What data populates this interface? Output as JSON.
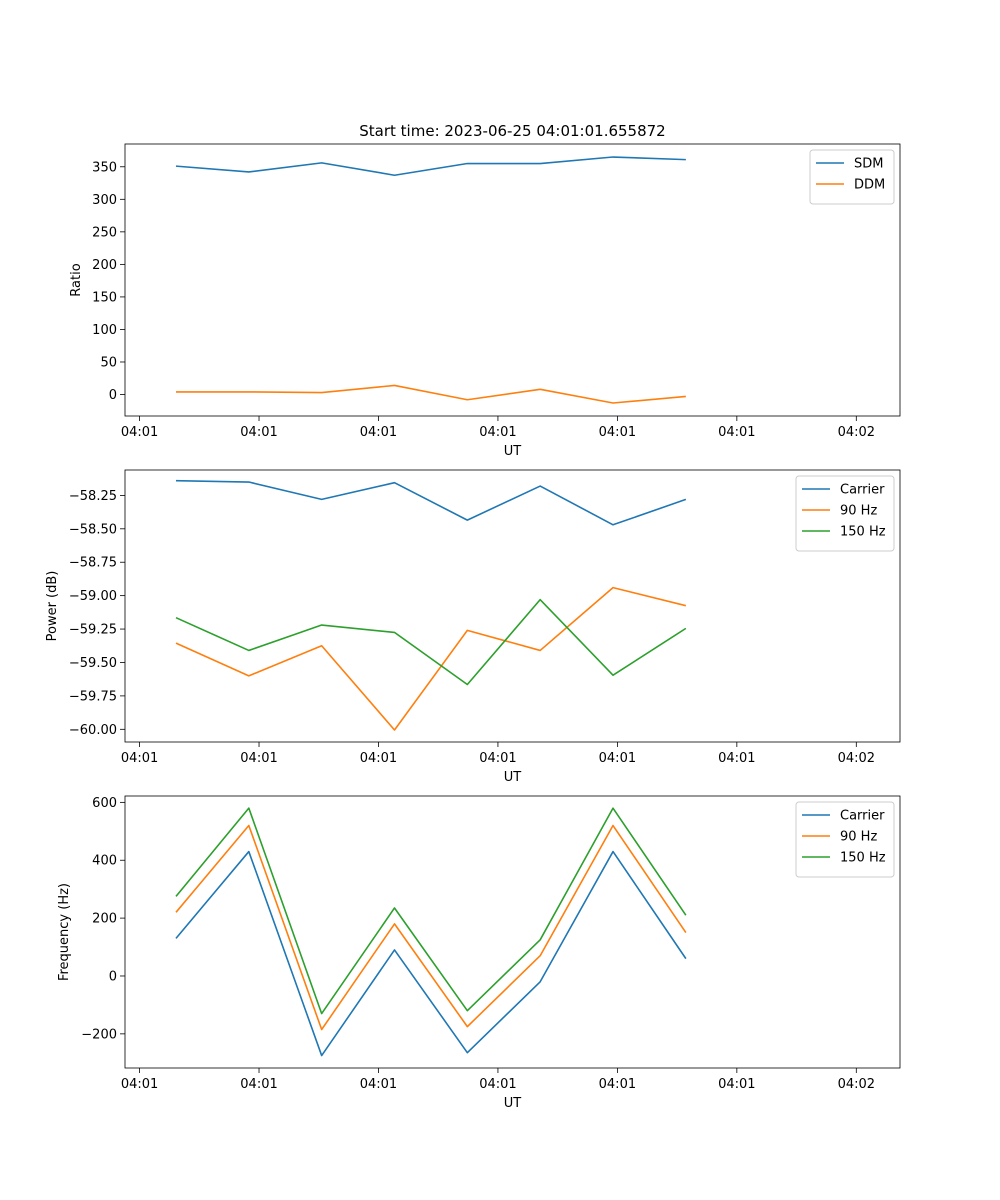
{
  "figure_title": "Start time: 2023-06-25 04:01:01.655872",
  "chart_data": [
    {
      "type": "line",
      "title": "Start time: 2023-06-25 04:01:01.655872",
      "xlabel": "UT",
      "ylabel": "Ratio",
      "x_tick_labels": [
        "04:01",
        "04:01",
        "04:01",
        "04:01",
        "04:01",
        "04:01",
        "04:02"
      ],
      "x": [
        0.5,
        1.5,
        2.5,
        3.5,
        4.5,
        5.5,
        6.5,
        7.5
      ],
      "xlim": [
        -0.2,
        9.2
      ],
      "ylim": [
        -33,
        385
      ],
      "yticks": [
        0,
        50,
        100,
        150,
        200,
        250,
        300,
        350
      ],
      "y_tick_labels": [
        "0",
        "50",
        "100",
        "150",
        "200",
        "250",
        "300",
        "350"
      ],
      "legend_position": "top-right",
      "grid": false,
      "series": [
        {
          "name": "SDM",
          "color": "#1f77b4",
          "values": [
            351,
            342,
            356,
            337,
            355,
            355,
            365,
            361
          ]
        },
        {
          "name": "DDM",
          "color": "#ff7f0e",
          "values": [
            4,
            4,
            3,
            14,
            -8,
            8,
            -13,
            -3
          ]
        }
      ]
    },
    {
      "type": "line",
      "title": "",
      "xlabel": "UT",
      "ylabel": "Power (dB)",
      "x_tick_labels": [
        "04:01",
        "04:01",
        "04:01",
        "04:01",
        "04:01",
        "04:01",
        "04:02"
      ],
      "x": [
        0.5,
        1.5,
        2.5,
        3.5,
        4.5,
        5.5,
        6.5,
        7.5
      ],
      "xlim": [
        -0.2,
        9.2
      ],
      "ylim": [
        -60.095,
        -58.06
      ],
      "yticks": [
        -60.0,
        -59.75,
        -59.5,
        -59.25,
        -59.0,
        -58.75,
        -58.5,
        -58.25
      ],
      "y_tick_labels": [
        "−60.00",
        "−59.75",
        "−59.50",
        "−59.25",
        "−59.00",
        "−58.75",
        "−58.50",
        "−58.25"
      ],
      "legend_position": "top-right",
      "grid": false,
      "series": [
        {
          "name": "Carrier",
          "color": "#1f77b4",
          "values": [
            -58.14,
            -58.15,
            -58.28,
            -58.155,
            -58.435,
            -58.18,
            -58.47,
            -58.28
          ]
        },
        {
          "name": "90 Hz",
          "color": "#ff7f0e",
          "values": [
            -59.355,
            -59.6,
            -59.375,
            -60.005,
            -59.26,
            -59.41,
            -58.94,
            -59.075
          ]
        },
        {
          "name": "150 Hz",
          "color": "#2ca02c",
          "values": [
            -59.165,
            -59.41,
            -59.22,
            -59.275,
            -59.665,
            -59.03,
            -59.595,
            -59.245
          ]
        }
      ]
    },
    {
      "type": "line",
      "title": "",
      "xlabel": "UT",
      "ylabel": "Frequency (Hz)",
      "x_tick_labels": [
        "04:01",
        "04:01",
        "04:01",
        "04:01",
        "04:01",
        "04:01",
        "04:02"
      ],
      "x": [
        0.5,
        1.5,
        2.5,
        3.5,
        4.5,
        5.5,
        6.5,
        7.5
      ],
      "xlim": [
        -0.2,
        9.2
      ],
      "ylim": [
        -318,
        622
      ],
      "yticks": [
        -200,
        0,
        200,
        400,
        600
      ],
      "y_tick_labels": [
        "−200",
        "0",
        "200",
        "400",
        "600"
      ],
      "legend_position": "top-right",
      "grid": false,
      "series": [
        {
          "name": "Carrier",
          "color": "#1f77b4",
          "values": [
            130,
            430,
            -275,
            90,
            -265,
            -20,
            430,
            60
          ]
        },
        {
          "name": "90 Hz",
          "color": "#ff7f0e",
          "values": [
            220,
            520,
            -185,
            180,
            -175,
            70,
            520,
            150
          ]
        },
        {
          "name": "150 Hz",
          "color": "#2ca02c",
          "values": [
            275,
            580,
            -130,
            235,
            -120,
            125,
            580,
            210
          ]
        }
      ]
    }
  ]
}
